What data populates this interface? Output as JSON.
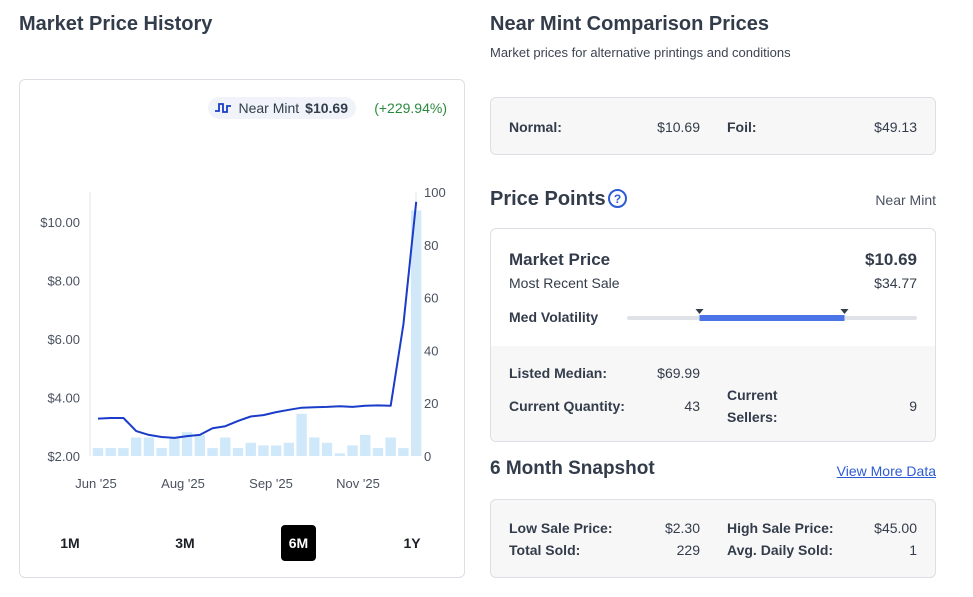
{
  "left": {
    "title": "Market Price History",
    "legend": {
      "label": "Near Mint",
      "price": "$10.69",
      "change": "(+229.94%)"
    },
    "ranges": [
      "1M",
      "3M",
      "6M",
      "1Y"
    ],
    "active_range": "6M"
  },
  "comparison": {
    "title": "Near Mint Comparison Prices",
    "subtitle": "Market prices for alternative printings and conditions",
    "normal_label": "Normal:",
    "normal_value": "$10.69",
    "foil_label": "Foil:",
    "foil_value": "$49.13"
  },
  "price_points": {
    "title": "Price Points",
    "help_glyph": "?",
    "condition": "Near Mint",
    "market_price_label": "Market Price",
    "market_price_value": "$10.69",
    "recent_sale_label": "Most Recent Sale",
    "recent_sale_value": "$34.77",
    "volatility_label": "Med Volatility",
    "volatility_range": [
      0.25,
      0.75
    ],
    "listed_median_label": "Listed Median:",
    "listed_median_value": "$69.99",
    "current_quantity_label": "Current Quantity:",
    "current_quantity_value": "43",
    "current_sellers_label_1": "Current",
    "current_sellers_label_2": "Sellers:",
    "current_sellers_value": "9"
  },
  "snapshot": {
    "title": "6 Month Snapshot",
    "link": "View More Data",
    "low_sale_label": "Low Sale Price:",
    "low_sale_value": "$2.30",
    "high_sale_label": "High Sale Price:",
    "high_sale_value": "$45.00",
    "total_sold_label": "Total Sold:",
    "total_sold_value": "229",
    "avg_daily_label": "Avg. Daily Sold:",
    "avg_daily_value": "1"
  },
  "colors": {
    "line": "#1a3cc8",
    "bar": "#cfe8fa",
    "accent": "#2c5bd6",
    "positive": "#2a8a3e",
    "volatility": "#4a74e8"
  },
  "chart_data": {
    "type": "line",
    "x_ticks": [
      "Jun '25",
      "Aug '25",
      "Sep '25",
      "Nov '25"
    ],
    "y_left_ticks": [
      "$2.00",
      "$4.00",
      "$6.00",
      "$8.00",
      "$10.00"
    ],
    "y_left_range": [
      2,
      11
    ],
    "y_right_ticks": [
      "0",
      "20",
      "40",
      "60",
      "80",
      "100"
    ],
    "y_right_range": [
      0,
      100
    ],
    "series": [
      {
        "name": "Near Mint",
        "axis": "left",
        "values": [
          3.28,
          3.3,
          3.3,
          2.85,
          2.72,
          2.65,
          2.62,
          2.68,
          2.72,
          2.95,
          3.02,
          3.2,
          3.35,
          3.4,
          3.5,
          3.58,
          3.65,
          3.67,
          3.68,
          3.7,
          3.68,
          3.72,
          3.73,
          3.72,
          6.5,
          10.69
        ]
      },
      {
        "axis": "right",
        "type": "bar",
        "values": [
          3,
          3,
          3,
          7,
          7,
          3,
          7,
          9,
          8,
          3,
          7,
          3,
          5,
          4,
          4,
          5,
          16,
          7,
          5,
          1,
          4,
          8,
          3,
          7,
          3,
          93
        ]
      }
    ],
    "grid": false
  }
}
